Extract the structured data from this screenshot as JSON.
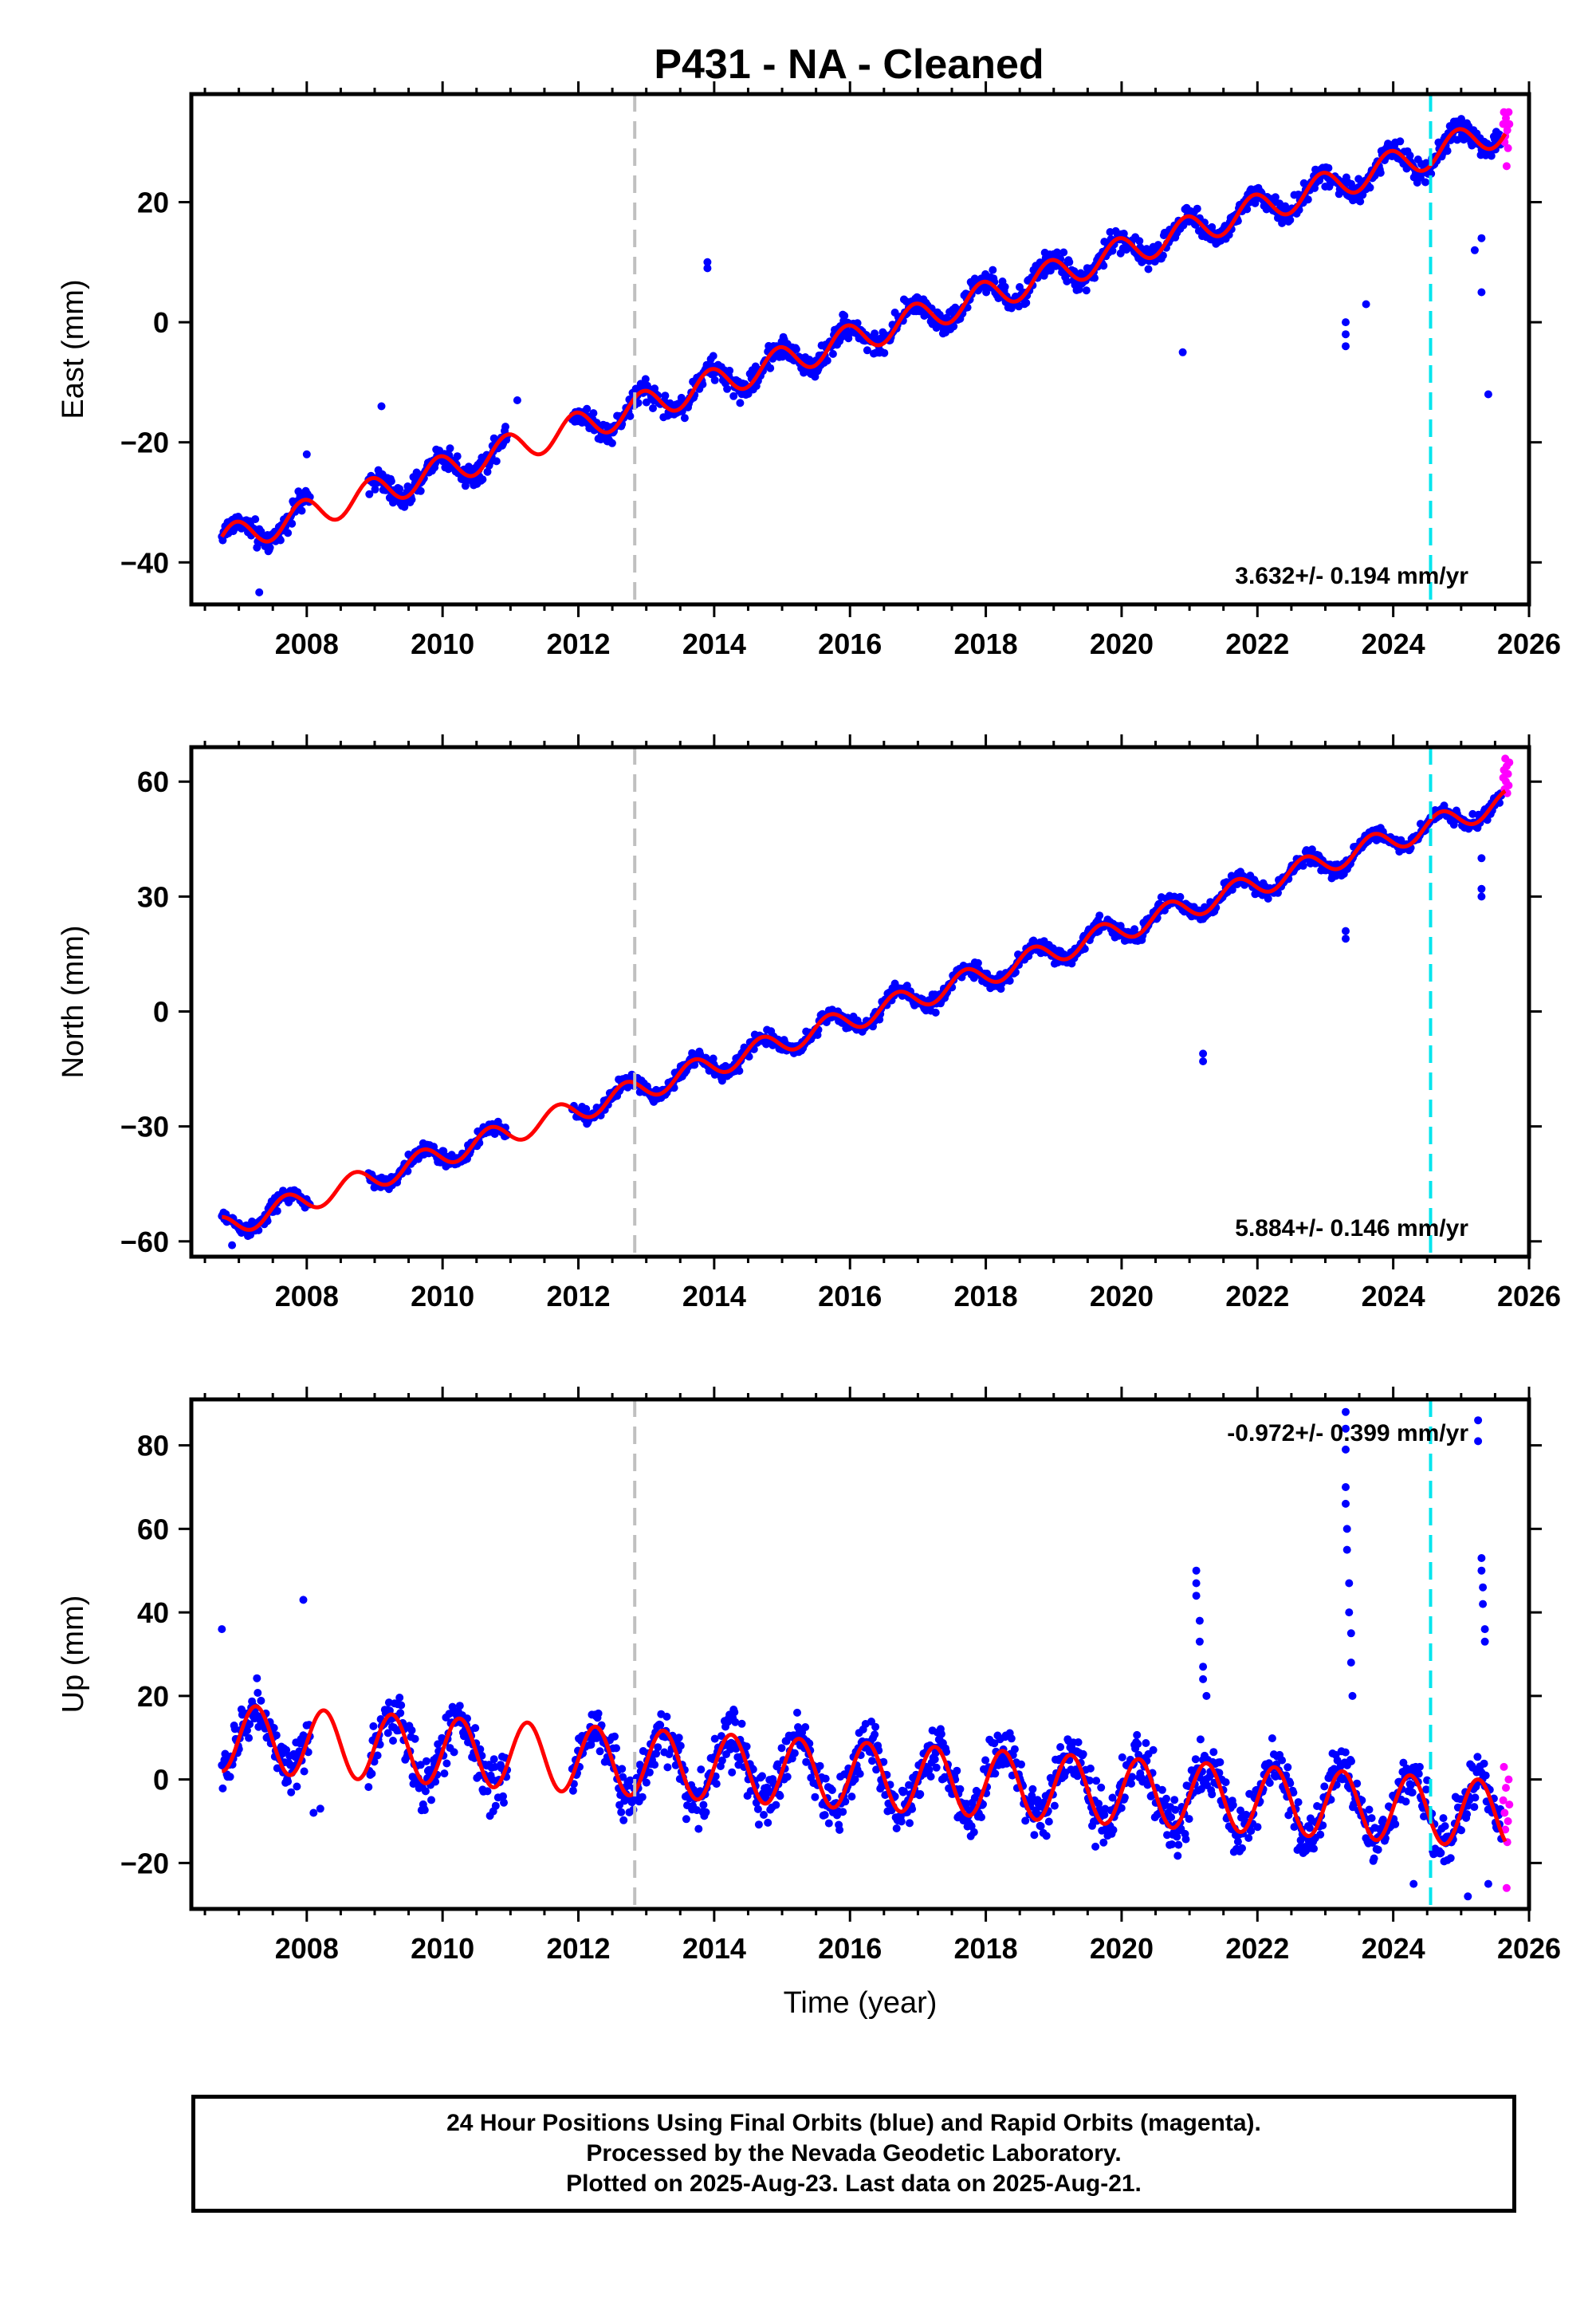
{
  "title": "P431  - NA - Cleaned",
  "colors": {
    "final_orbits": "#0000ff",
    "rapid_orbits": "#ff00ff",
    "model": "#ff0000",
    "gray_line": "#c0c0c0",
    "cyan_line": "#00e5ee"
  },
  "chart_data": [
    {
      "type": "scatter",
      "ylabel": "East (mm)",
      "xlabel": "",
      "xlim": [
        2006.3,
        2026.0
      ],
      "ylim": [
        -47,
        38
      ],
      "xticks": [
        "2008",
        "2010",
        "2012",
        "2014",
        "2016",
        "2018",
        "2020",
        "2022",
        "2024",
        "2026"
      ],
      "yticks": [
        {
          "v": -40,
          "label": "−40"
        },
        {
          "v": -20,
          "label": "−20"
        },
        {
          "v": 0,
          "label": "0"
        },
        {
          "v": 20,
          "label": "20"
        }
      ],
      "rate": "3.632+/- 0.194 mm/yr",
      "rate_position": "bottom-right",
      "vlines": [
        {
          "x": 2012.83,
          "color": "gray"
        },
        {
          "x": 2024.55,
          "color": "cyan"
        }
      ],
      "model": {
        "t0": 2006.75,
        "y0": -36.5,
        "slope": 3.632,
        "amp": 2.5,
        "phase": 0.3
      },
      "gaps": [
        [
          2008.05,
          2008.9
        ],
        [
          2010.95,
          2011.9
        ]
      ],
      "outliers": [
        [
          2007.3,
          -45
        ],
        [
          2008.0,
          -22
        ],
        [
          2009.1,
          -14
        ],
        [
          2011.1,
          -13
        ],
        [
          2013.9,
          10
        ],
        [
          2013.9,
          9
        ],
        [
          2020.9,
          -5
        ],
        [
          2023.3,
          -4
        ],
        [
          2023.3,
          -2
        ],
        [
          2023.3,
          0
        ],
        [
          2023.6,
          3
        ],
        [
          2025.2,
          12
        ],
        [
          2025.3,
          14
        ],
        [
          2025.3,
          5
        ],
        [
          2025.4,
          -12
        ]
      ],
      "rapid": [
        [
          2025.62,
          33
        ],
        [
          2025.63,
          35
        ],
        [
          2025.64,
          30
        ],
        [
          2025.65,
          31
        ],
        [
          2025.66,
          34
        ],
        [
          2025.67,
          26
        ],
        [
          2025.68,
          32
        ],
        [
          2025.69,
          29
        ],
        [
          2025.7,
          35
        ],
        [
          2025.71,
          33
        ]
      ]
    },
    {
      "type": "scatter",
      "ylabel": "North (mm)",
      "xlabel": "",
      "xlim": [
        2006.3,
        2026.0
      ],
      "ylim": [
        -64,
        69
      ],
      "xticks": [
        "2008",
        "2010",
        "2012",
        "2014",
        "2016",
        "2018",
        "2020",
        "2022",
        "2024",
        "2026"
      ],
      "yticks": [
        {
          "v": -60,
          "label": "−60"
        },
        {
          "v": -30,
          "label": "−30"
        },
        {
          "v": 0,
          "label": "0"
        },
        {
          "v": 30,
          "label": "30"
        },
        {
          "v": 60,
          "label": "60"
        }
      ],
      "rate": "5.884+/- 0.146 mm/yr",
      "rate_position": "bottom-right",
      "vlines": [
        {
          "x": 2012.83,
          "color": "gray"
        },
        {
          "x": 2024.55,
          "color": "cyan"
        }
      ],
      "model": {
        "t0": 2006.75,
        "y0": -56.5,
        "slope": 5.884,
        "amp": 3.0,
        "phase": 0.55
      },
      "gaps": [
        [
          2008.05,
          2008.9
        ],
        [
          2010.95,
          2011.9
        ]
      ],
      "outliers": [
        [
          2006.9,
          -61
        ],
        [
          2021.2,
          -13
        ],
        [
          2021.2,
          -11
        ],
        [
          2023.3,
          19
        ],
        [
          2023.3,
          21
        ],
        [
          2025.3,
          30
        ],
        [
          2025.3,
          32
        ],
        [
          2025.3,
          40
        ]
      ],
      "rapid": [
        [
          2025.62,
          61
        ],
        [
          2025.63,
          63
        ],
        [
          2025.64,
          58
        ],
        [
          2025.65,
          66
        ],
        [
          2025.66,
          60
        ],
        [
          2025.67,
          64
        ],
        [
          2025.68,
          57
        ],
        [
          2025.69,
          62
        ],
        [
          2025.7,
          59
        ],
        [
          2025.71,
          65
        ]
      ]
    },
    {
      "type": "scatter",
      "ylabel": "Up (mm)",
      "xlabel": "Time (year)",
      "xlim": [
        2006.3,
        2026.0
      ],
      "ylim": [
        -31,
        91
      ],
      "xticks": [
        "2008",
        "2010",
        "2012",
        "2014",
        "2016",
        "2018",
        "2020",
        "2022",
        "2024",
        "2026"
      ],
      "yticks": [
        {
          "v": -20,
          "label": "−20"
        },
        {
          "v": 0,
          "label": "0"
        },
        {
          "v": 20,
          "label": "20"
        },
        {
          "v": 40,
          "label": "40"
        },
        {
          "v": 60,
          "label": "60"
        },
        {
          "v": 80,
          "label": "80"
        }
      ],
      "rate": "-0.972+/- 0.399 mm/yr",
      "rate_position": "top-right",
      "vlines": [
        {
          "x": 2012.83,
          "color": "gray"
        },
        {
          "x": 2024.55,
          "color": "cyan"
        }
      ],
      "model": {
        "t0": 2006.75,
        "y0": 10,
        "slope": -0.972,
        "amp": 8.0,
        "phase": 0.0
      },
      "gaps": [
        [
          2008.05,
          2008.9
        ],
        [
          2010.95,
          2011.9
        ]
      ],
      "outliers": [
        [
          2006.75,
          36
        ],
        [
          2007.95,
          43
        ],
        [
          2008.1,
          -8
        ],
        [
          2008.2,
          -7
        ],
        [
          2021.1,
          50
        ],
        [
          2021.1,
          47
        ],
        [
          2021.1,
          44
        ],
        [
          2021.15,
          38
        ],
        [
          2021.15,
          33
        ],
        [
          2021.2,
          27
        ],
        [
          2021.2,
          24
        ],
        [
          2021.25,
          20
        ],
        [
          2023.3,
          88
        ],
        [
          2023.3,
          84
        ],
        [
          2023.3,
          79
        ],
        [
          2023.3,
          70
        ],
        [
          2023.3,
          66
        ],
        [
          2023.32,
          60
        ],
        [
          2023.32,
          55
        ],
        [
          2023.35,
          47
        ],
        [
          2023.35,
          40
        ],
        [
          2023.38,
          35
        ],
        [
          2023.38,
          28
        ],
        [
          2023.4,
          20
        ],
        [
          2025.25,
          86
        ],
        [
          2025.25,
          81
        ],
        [
          2025.3,
          53
        ],
        [
          2025.3,
          50
        ],
        [
          2025.32,
          46
        ],
        [
          2025.32,
          42
        ],
        [
          2025.35,
          36
        ],
        [
          2025.35,
          33
        ],
        [
          2025.4,
          -25
        ],
        [
          2024.3,
          -25
        ],
        [
          2025.1,
          -28
        ]
      ],
      "rapid": [
        [
          2025.62,
          -5
        ],
        [
          2025.63,
          3
        ],
        [
          2025.64,
          -8
        ],
        [
          2025.65,
          -12
        ],
        [
          2025.66,
          -2
        ],
        [
          2025.67,
          -26
        ],
        [
          2025.68,
          -15
        ],
        [
          2025.69,
          -10
        ],
        [
          2025.7,
          0
        ],
        [
          2025.71,
          -6
        ]
      ]
    }
  ],
  "footer": {
    "line1": "24 Hour Positions Using Final Orbits (blue) and Rapid Orbits (magenta).",
    "line2": "Processed by the Nevada Geodetic Laboratory.",
    "line3": "Plotted on 2025-Aug-23. Last data on 2025-Aug-21."
  }
}
